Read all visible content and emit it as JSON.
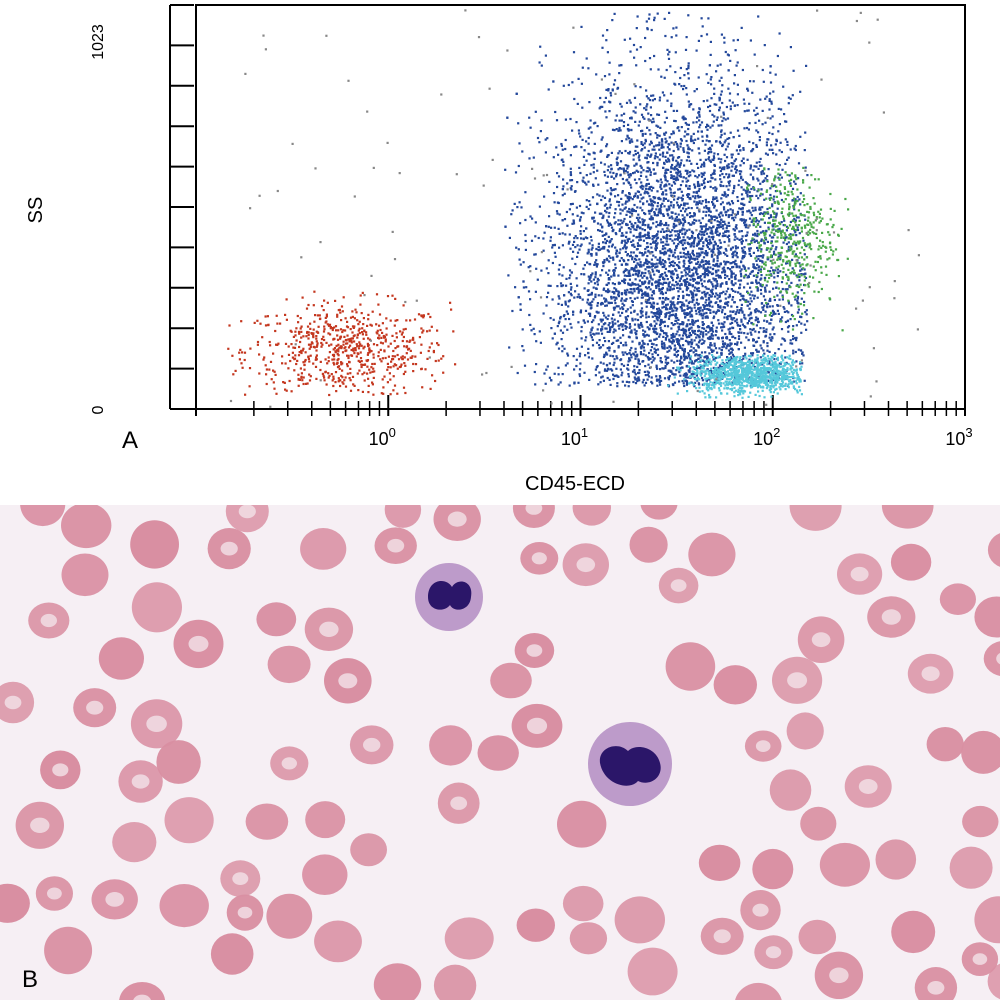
{
  "panels": {
    "a_label": "A",
    "b_label": "B"
  },
  "chart_data": {
    "type": "scatter",
    "title": "",
    "xlabel": "CD45-ECD",
    "ylabel": "SS",
    "x_scale": "log",
    "xlim": [
      0.1,
      1000
    ],
    "ylim": [
      0,
      1023
    ],
    "x_ticks": [
      {
        "value": 1,
        "base": "10",
        "exp": "0"
      },
      {
        "value": 10,
        "base": "10",
        "exp": "1"
      },
      {
        "value": 100,
        "base": "10",
        "exp": "2"
      },
      {
        "value": 1000,
        "base": "10",
        "exp": "3"
      }
    ],
    "y_ticks": [
      {
        "value": 0,
        "label": "0"
      },
      {
        "value": 1023,
        "label": "1023"
      }
    ],
    "grid": false,
    "legend": "none",
    "series": [
      {
        "color": "#c4371f",
        "x_range": [
          0.14,
          2.2
        ],
        "y_range": [
          30,
          300
        ],
        "center": [
          0.6,
          150
        ],
        "approx_points": 650
      },
      {
        "color": "#23489b",
        "x_range": [
          4,
          150
        ],
        "y_range": [
          60,
          1023
        ],
        "center": [
          33,
          330
        ],
        "approx_points": 5200
      },
      {
        "color": "#4aa84a",
        "x_range": [
          70,
          250
        ],
        "y_range": [
          200,
          620
        ],
        "center": [
          120,
          440
        ],
        "approx_points": 420
      },
      {
        "color": "#55c8da",
        "x_range": [
          28,
          140
        ],
        "y_range": [
          30,
          140
        ],
        "center": [
          75,
          90
        ],
        "approx_points": 950
      },
      {
        "color": "#888888",
        "x_range": [
          0.15,
          600
        ],
        "y_range": [
          0,
          1023
        ],
        "center": [
          10,
          500
        ],
        "approx_points": 110
      }
    ]
  },
  "smear": {
    "background": "#f6eff4",
    "rbc_color": "#d98fa2",
    "nucleus_color": "#2b1669",
    "cytoplasm_color": "#b38cc2"
  }
}
